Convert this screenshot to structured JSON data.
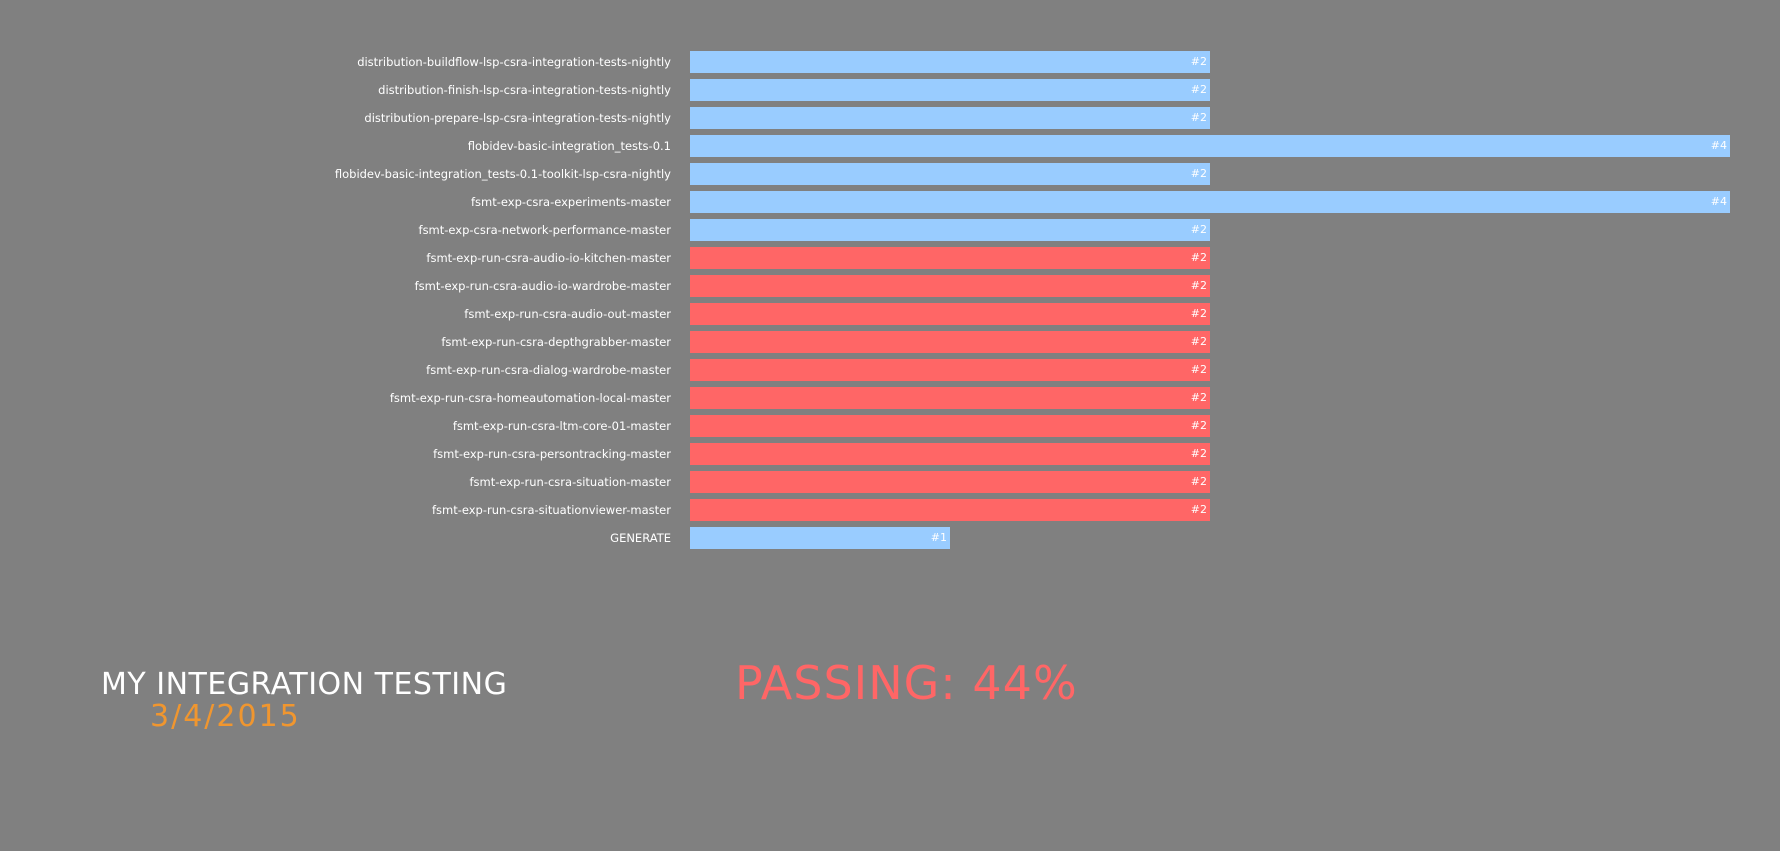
{
  "colors": {
    "background": "#808080",
    "success": "#99ccff",
    "failure": "#ff6666",
    "date": "#f0962f",
    "passing": "#ff6666"
  },
  "jobs": [
    {
      "name": "distribution-buildflow-lsp-csra-integration-tests-nightly",
      "build": "#2",
      "build_number": 2,
      "status": "success"
    },
    {
      "name": "distribution-finish-lsp-csra-integration-tests-nightly",
      "build": "#2",
      "build_number": 2,
      "status": "success"
    },
    {
      "name": "distribution-prepare-lsp-csra-integration-tests-nightly",
      "build": "#2",
      "build_number": 2,
      "status": "success"
    },
    {
      "name": "flobidev-basic-integration_tests-0.1",
      "build": "#4",
      "build_number": 4,
      "status": "success"
    },
    {
      "name": "flobidev-basic-integration_tests-0.1-toolkit-lsp-csra-nightly",
      "build": "#2",
      "build_number": 2,
      "status": "success"
    },
    {
      "name": "fsmt-exp-csra-experiments-master",
      "build": "#4",
      "build_number": 4,
      "status": "success"
    },
    {
      "name": "fsmt-exp-csra-network-performance-master",
      "build": "#2",
      "build_number": 2,
      "status": "success"
    },
    {
      "name": "fsmt-exp-run-csra-audio-io-kitchen-master",
      "build": "#2",
      "build_number": 2,
      "status": "failure"
    },
    {
      "name": "fsmt-exp-run-csra-audio-io-wardrobe-master",
      "build": "#2",
      "build_number": 2,
      "status": "failure"
    },
    {
      "name": "fsmt-exp-run-csra-audio-out-master",
      "build": "#2",
      "build_number": 2,
      "status": "failure"
    },
    {
      "name": "fsmt-exp-run-csra-depthgrabber-master",
      "build": "#2",
      "build_number": 2,
      "status": "failure"
    },
    {
      "name": "fsmt-exp-run-csra-dialog-wardrobe-master",
      "build": "#2",
      "build_number": 2,
      "status": "failure"
    },
    {
      "name": "fsmt-exp-run-csra-homeautomation-local-master",
      "build": "#2",
      "build_number": 2,
      "status": "failure"
    },
    {
      "name": "fsmt-exp-run-csra-ltm-core-01-master",
      "build": "#2",
      "build_number": 2,
      "status": "failure"
    },
    {
      "name": "fsmt-exp-run-csra-persontracking-master",
      "build": "#2",
      "build_number": 2,
      "status": "failure"
    },
    {
      "name": "fsmt-exp-run-csra-situation-master",
      "build": "#2",
      "build_number": 2,
      "status": "failure"
    },
    {
      "name": "fsmt-exp-run-csra-situationviewer-master",
      "build": "#2",
      "build_number": 2,
      "status": "failure"
    },
    {
      "name": "GENERATE",
      "build": "#1",
      "build_number": 1,
      "status": "success"
    }
  ],
  "footer": {
    "title": "MY INTEGRATION TESTING",
    "date": "3/4/2015"
  },
  "summary": {
    "label": "PASSING: 44%",
    "percent": 44
  }
}
